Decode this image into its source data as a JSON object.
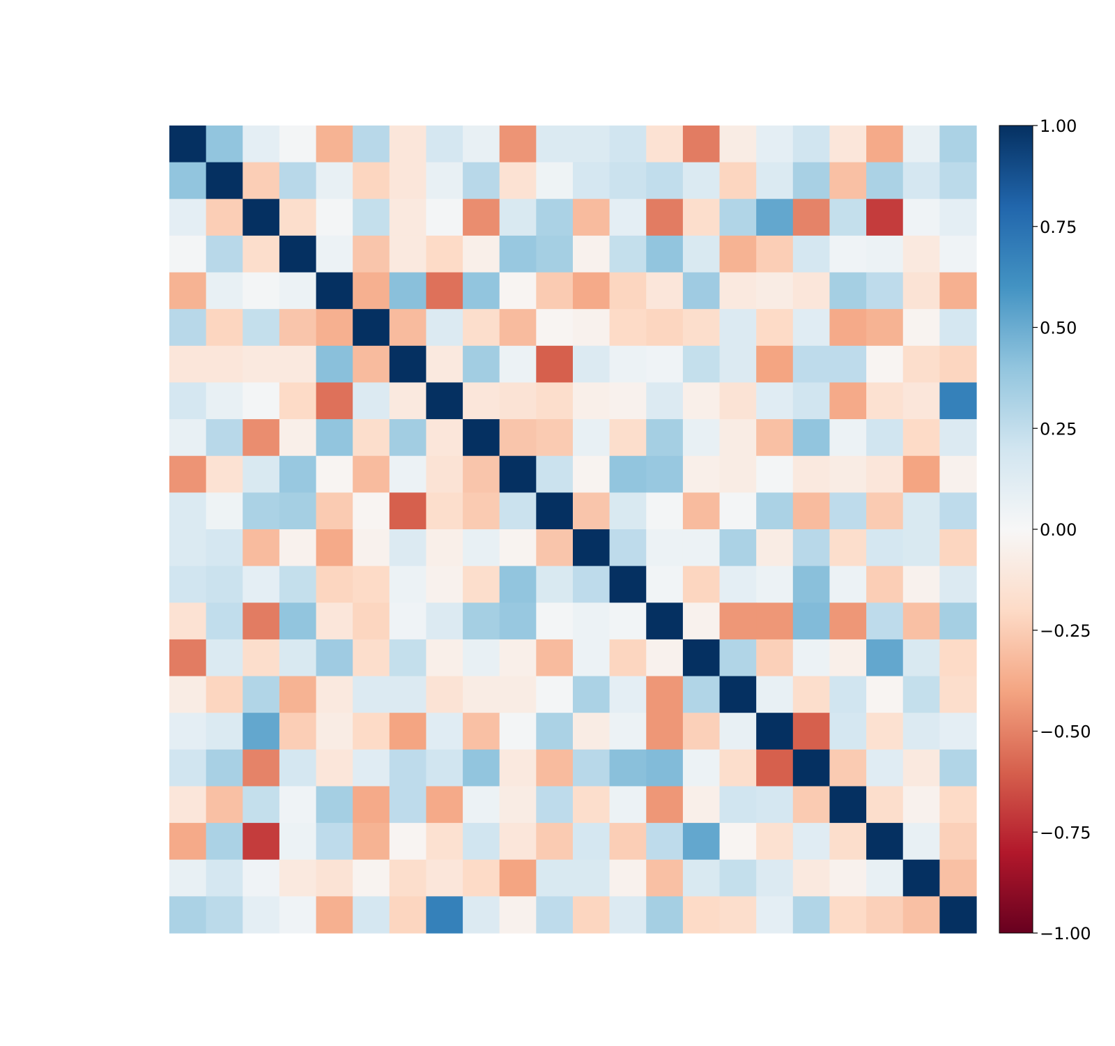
{
  "chart_data": {
    "type": "heatmap",
    "title": "",
    "xlabel": "",
    "ylabel": "",
    "n": 22,
    "colormap": "RdBu",
    "vmin": -1.0,
    "vmax": 1.0,
    "colorbar_ticks": [
      1.0,
      0.75,
      0.5,
      0.25,
      0.0,
      -0.25,
      -0.5,
      -0.75,
      -1.0
    ],
    "colorbar_tick_labels": [
      "1.00",
      "0.75",
      "0.50",
      "0.25",
      "0.00",
      "−0.25",
      "−0.50",
      "−0.75",
      "−1.00"
    ],
    "matrix": [
      [
        1.0,
        0.4,
        0.1,
        0.02,
        -0.35,
        0.28,
        -0.12,
        0.18,
        0.08,
        -0.45,
        0.15,
        0.15,
        0.2,
        -0.15,
        -0.52,
        -0.08,
        0.1,
        0.2,
        -0.12,
        -0.38,
        0.08,
        0.32
      ],
      [
        0.4,
        1.0,
        -0.25,
        0.28,
        0.08,
        -0.22,
        -0.12,
        0.08,
        0.28,
        -0.15,
        0.05,
        0.18,
        0.22,
        0.25,
        0.15,
        -0.22,
        0.15,
        0.33,
        -0.3,
        0.32,
        0.18,
        0.27
      ],
      [
        0.1,
        -0.25,
        1.0,
        -0.18,
        0.02,
        0.24,
        -0.1,
        0.02,
        -0.47,
        0.16,
        0.32,
        -0.32,
        0.1,
        -0.52,
        -0.18,
        0.3,
        0.52,
        -0.5,
        0.24,
        -0.7,
        0.04,
        0.1
      ],
      [
        0.02,
        0.28,
        -0.18,
        1.0,
        0.06,
        -0.28,
        -0.1,
        -0.2,
        -0.06,
        0.38,
        0.34,
        -0.04,
        0.24,
        0.4,
        0.16,
        -0.35,
        -0.25,
        0.18,
        0.04,
        0.06,
        -0.1,
        0.04
      ],
      [
        -0.35,
        0.08,
        0.02,
        0.06,
        1.0,
        -0.36,
        0.42,
        -0.55,
        0.4,
        -0.02,
        -0.26,
        -0.38,
        -0.22,
        -0.12,
        0.36,
        -0.1,
        -0.08,
        -0.12,
        0.34,
        0.26,
        -0.14,
        -0.36
      ],
      [
        0.28,
        -0.22,
        0.24,
        -0.28,
        -0.36,
        1.0,
        -0.32,
        0.14,
        -0.18,
        -0.32,
        -0.02,
        -0.04,
        -0.2,
        -0.22,
        -0.18,
        0.14,
        -0.2,
        0.12,
        -0.38,
        -0.35,
        -0.03,
        0.18
      ],
      [
        -0.12,
        -0.12,
        -0.1,
        -0.1,
        0.42,
        -0.32,
        1.0,
        -0.1,
        0.35,
        0.06,
        -0.6,
        0.14,
        0.06,
        0.04,
        0.24,
        0.14,
        -0.4,
        0.26,
        0.26,
        -0.02,
        -0.18,
        -0.22
      ],
      [
        0.18,
        0.08,
        0.02,
        -0.2,
        -0.55,
        0.14,
        -0.1,
        1.0,
        -0.12,
        -0.14,
        -0.18,
        -0.06,
        -0.04,
        0.14,
        -0.06,
        -0.14,
        0.12,
        0.2,
        -0.38,
        -0.16,
        -0.12,
        0.68
      ],
      [
        0.08,
        0.28,
        -0.47,
        -0.06,
        0.4,
        -0.18,
        0.35,
        -0.12,
        1.0,
        -0.28,
        -0.26,
        0.08,
        -0.18,
        0.34,
        0.08,
        -0.08,
        -0.3,
        0.4,
        0.06,
        0.2,
        -0.2,
        0.14
      ],
      [
        -0.45,
        -0.15,
        0.16,
        0.38,
        -0.02,
        -0.32,
        0.06,
        -0.14,
        -0.28,
        1.0,
        0.22,
        -0.03,
        0.4,
        0.38,
        -0.06,
        -0.08,
        0.02,
        -0.1,
        -0.08,
        -0.12,
        -0.4,
        -0.04
      ],
      [
        0.15,
        0.05,
        0.32,
        0.34,
        -0.26,
        -0.02,
        -0.6,
        -0.18,
        -0.26,
        0.22,
        1.0,
        -0.28,
        0.16,
        0.02,
        -0.32,
        0.02,
        0.32,
        -0.32,
        0.26,
        -0.26,
        0.16,
        0.26
      ],
      [
        0.15,
        0.18,
        -0.32,
        -0.04,
        -0.38,
        -0.04,
        0.14,
        -0.06,
        0.08,
        -0.03,
        -0.28,
        1.0,
        0.26,
        0.06,
        0.06,
        0.32,
        -0.08,
        0.28,
        -0.18,
        0.18,
        0.16,
        -0.22
      ],
      [
        0.2,
        0.22,
        0.1,
        0.24,
        -0.22,
        -0.2,
        0.06,
        -0.04,
        -0.18,
        0.4,
        0.16,
        0.26,
        1.0,
        0.03,
        -0.22,
        0.1,
        0.06,
        0.42,
        0.06,
        -0.25,
        -0.04,
        0.14
      ],
      [
        -0.15,
        0.25,
        -0.52,
        0.4,
        -0.12,
        -0.22,
        0.04,
        0.14,
        0.34,
        0.38,
        0.02,
        0.06,
        0.03,
        1.0,
        -0.04,
        -0.44,
        -0.44,
        0.44,
        -0.44,
        0.26,
        -0.3,
        0.34
      ],
      [
        -0.52,
        0.15,
        -0.18,
        0.16,
        0.36,
        -0.18,
        0.24,
        -0.06,
        0.08,
        -0.06,
        -0.32,
        0.06,
        -0.22,
        -0.04,
        1.0,
        0.3,
        -0.24,
        0.06,
        -0.06,
        0.52,
        0.16,
        -0.2
      ],
      [
        -0.08,
        -0.22,
        0.3,
        -0.35,
        -0.1,
        0.14,
        0.14,
        -0.14,
        -0.08,
        -0.08,
        0.02,
        0.32,
        0.1,
        -0.44,
        0.3,
        1.0,
        0.08,
        -0.18,
        0.2,
        -0.02,
        0.24,
        -0.18
      ],
      [
        0.1,
        0.15,
        0.52,
        -0.25,
        -0.08,
        -0.2,
        -0.4,
        0.12,
        -0.3,
        0.02,
        0.32,
        -0.08,
        0.06,
        -0.44,
        -0.24,
        0.08,
        1.0,
        -0.6,
        0.18,
        -0.16,
        0.14,
        0.1
      ],
      [
        0.2,
        0.33,
        -0.5,
        0.18,
        -0.12,
        0.12,
        0.26,
        0.2,
        0.4,
        -0.1,
        -0.32,
        0.28,
        0.42,
        0.44,
        0.06,
        -0.18,
        -0.6,
        1.0,
        -0.26,
        0.12,
        -0.1,
        0.3
      ],
      [
        -0.12,
        -0.3,
        0.24,
        0.04,
        0.34,
        -0.38,
        0.26,
        -0.38,
        0.06,
        -0.08,
        0.26,
        -0.18,
        0.06,
        -0.44,
        -0.06,
        0.2,
        0.18,
        -0.26,
        1.0,
        -0.18,
        -0.04,
        -0.2
      ],
      [
        -0.38,
        0.32,
        -0.7,
        0.06,
        0.26,
        -0.35,
        -0.02,
        -0.16,
        0.2,
        -0.12,
        -0.26,
        0.18,
        -0.25,
        0.26,
        0.52,
        -0.02,
        -0.16,
        0.12,
        -0.18,
        1.0,
        0.08,
        -0.24
      ],
      [
        0.08,
        0.18,
        0.04,
        -0.1,
        -0.14,
        -0.03,
        -0.18,
        -0.12,
        -0.2,
        -0.4,
        0.16,
        0.16,
        -0.04,
        -0.3,
        0.16,
        0.24,
        0.14,
        -0.1,
        -0.04,
        0.08,
        1.0,
        -0.3
      ],
      [
        0.32,
        0.27,
        0.1,
        0.04,
        -0.36,
        0.18,
        -0.22,
        0.68,
        0.14,
        -0.04,
        0.26,
        -0.22,
        0.14,
        0.34,
        -0.2,
        -0.18,
        0.1,
        0.3,
        -0.2,
        -0.24,
        -0.3,
        1.0
      ]
    ]
  }
}
